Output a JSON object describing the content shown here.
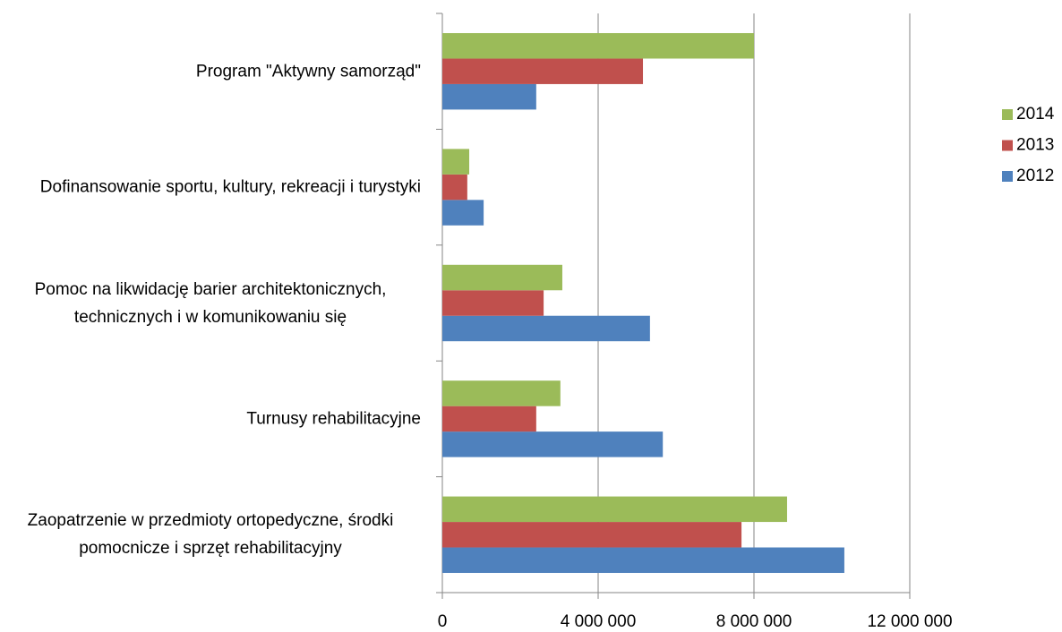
{
  "chart_data": {
    "type": "hbar",
    "categories": [
      "Program \"Aktywny samorząd\"",
      "Dofinansowanie sportu, kultury, rekreacji i turystyki",
      "Pomoc na likwidację barier architektonicznych, technicznych i w komunikowaniu się",
      "Turnusy rehabilitacyjne",
      "Zaopatrzenie w przedmioty ortopedyczne, środki pomocnicze i sprzęt rehabilitacyjny"
    ],
    "series": [
      {
        "name": "2012",
        "color": "#4f81bd",
        "values": [
          2410000,
          1060000,
          5330000,
          5660000,
          10320000
        ]
      },
      {
        "name": "2013",
        "color": "#c0504d",
        "values": [
          5150000,
          640000,
          2600000,
          2410000,
          7680000
        ]
      },
      {
        "name": "2014",
        "color": "#9bbb59",
        "values": [
          8000000,
          690000,
          3080000,
          3030000,
          8850000
        ]
      }
    ],
    "xlim": [
      0,
      12000000
    ],
    "xticks": [
      0,
      {
        "value": 4000000,
        "label": "4 000 000"
      },
      {
        "value": 8000000,
        "label": "8 000 000"
      },
      {
        "value": 12000000,
        "label": "12 000 000"
      }
    ],
    "grid": true,
    "legend": "right"
  }
}
